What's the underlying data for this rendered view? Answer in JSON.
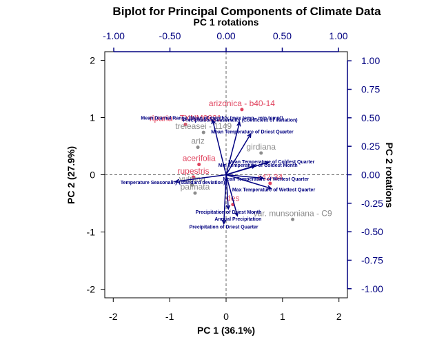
{
  "chart_data": {
    "type": "scatter",
    "title": "Biplot for Principal Components of Climate Data",
    "xlabel": "PC 1 (36.1%)",
    "ylabel": "PC 2 (27.9%)",
    "top_axis_label": "PC 1 rotations",
    "right_axis_label": "PC 2 rotations",
    "xlim": [
      -2.15,
      2.15
    ],
    "ylim": [
      -2.15,
      2.15
    ],
    "x_ticks": [
      "-2",
      "-1",
      "0",
      "1",
      "2"
    ],
    "y_ticks": [
      "-2",
      "-1",
      "0",
      "1",
      "2"
    ],
    "rot_lim": [
      -1.08,
      1.08
    ],
    "top_ticks": [
      "-1.00",
      "-0.50",
      "0.00",
      "0.50",
      "1.00"
    ],
    "right_ticks": [
      "1.00",
      "0.75",
      "0.50",
      "0.25",
      "0.00",
      "-0.25",
      "-0.50",
      "-0.75",
      "-1.00"
    ],
    "colors": {
      "highlight": "#E0435E",
      "other": "#8C8C8C",
      "arrow": "#000080",
      "axis_blue": "#000080",
      "reference": "#666666"
    },
    "points": [
      {
        "label": "arizonica - b40-14",
        "x": 0.28,
        "y": 1.14,
        "group": "highlight"
      },
      {
        "label": "riparia - TXNM0821",
        "x": -0.72,
        "y": 0.88,
        "group": "highlight"
      },
      {
        "label": "treleasei - 1149",
        "x": -0.4,
        "y": 0.74,
        "group": "other"
      },
      {
        "label": "ariz",
        "x": -0.5,
        "y": 0.48,
        "group": "other"
      },
      {
        "label": "acerifolia",
        "x": -0.48,
        "y": 0.18,
        "group": "highlight"
      },
      {
        "label": "rupestris",
        "x": -0.58,
        "y": -0.04,
        "group": "highlight"
      },
      {
        "label": "vulpina",
        "x": -0.6,
        "y": -0.18,
        "group": "other"
      },
      {
        "label": "palmata",
        "x": -0.55,
        "y": -0.32,
        "group": "other"
      },
      {
        "label": "girdiana",
        "x": 0.62,
        "y": 0.38,
        "group": "other"
      },
      {
        "label": "x42-34",
        "x": 0.78,
        "y": -0.15,
        "group": "highlight"
      },
      {
        "label": "des",
        "x": 0.12,
        "y": -0.52,
        "group": "highlight"
      },
      {
        "label": "var. munsoniana - C9",
        "x": 1.18,
        "y": -0.78,
        "group": "other"
      }
    ],
    "loadings": [
      {
        "label": "Mean Diurnal Range (Mean of monthly (max temp - min temp))",
        "x": -0.12,
        "y": 0.48
      },
      {
        "label": "Precipitation Seasonality (Coefficient of Variation)",
        "x": 0.12,
        "y": 0.46
      },
      {
        "label": "Mean Temperature of Driest Quarter",
        "x": 0.22,
        "y": 0.36
      },
      {
        "label": "Mean Temperature of Coldest Quarter",
        "x": 0.38,
        "y": 0.11
      },
      {
        "label": "Min Temperature of Coldest Month",
        "x": 0.26,
        "y": 0.08
      },
      {
        "label": "Mean Temperature of Wettest Quarter",
        "x": 0.33,
        "y": -0.03
      },
      {
        "label": "Max Temperature of Wettest Quarter",
        "x": 0.4,
        "y": -0.12
      },
      {
        "label": "Temperature Seasonality (standard deviation)",
        "x": -0.45,
        "y": -0.06
      },
      {
        "label": "Precipitation of Driest Month",
        "x": 0.02,
        "y": -0.3
      },
      {
        "label": "Annual Precipitation",
        "x": 0.1,
        "y": -0.36
      },
      {
        "label": "Precipitation of Driest Quarter",
        "x": -0.02,
        "y": -0.43
      }
    ]
  }
}
